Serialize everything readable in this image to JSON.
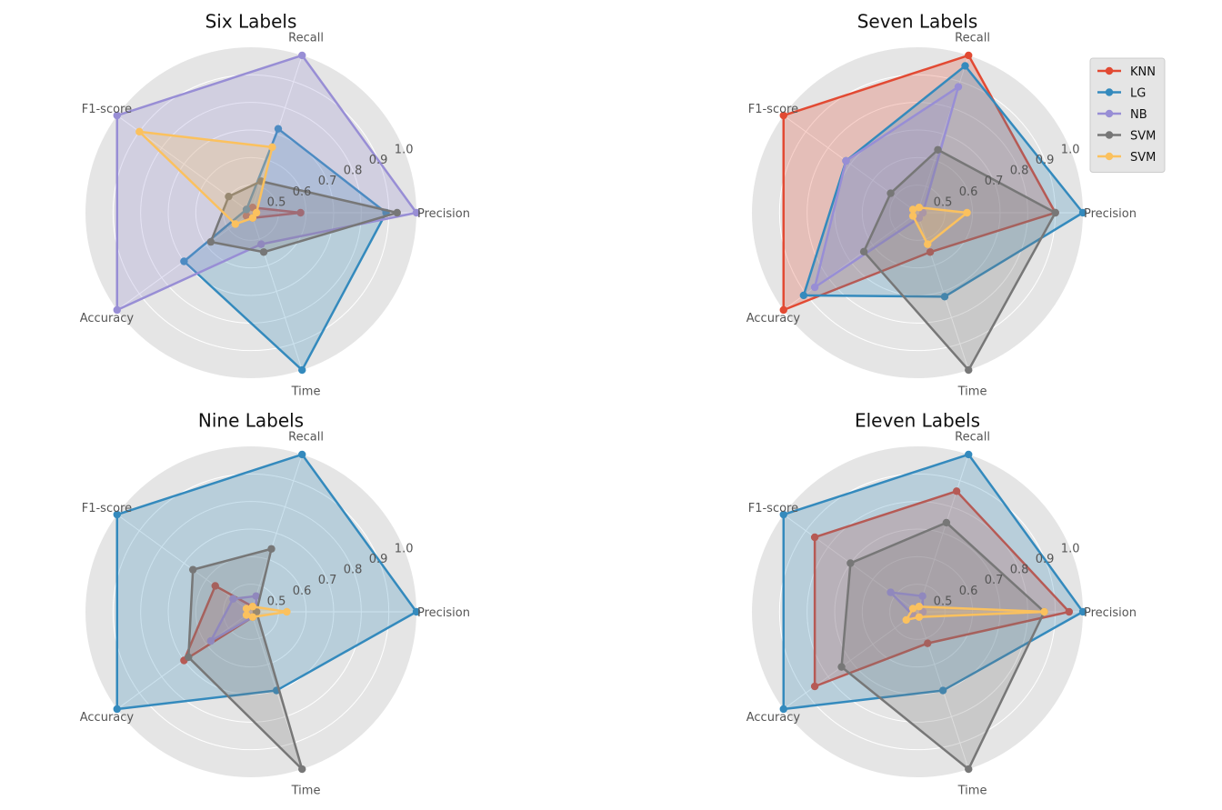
{
  "chart_data": [
    {
      "type": "radar",
      "title": "Six Labels",
      "axes": [
        "Precision",
        "Recall",
        "F1-score",
        "Accuracy",
        "Time"
      ],
      "rlim": [
        0.4,
        1.0
      ],
      "rticks": [
        "0.5",
        "0.6",
        "0.7",
        "0.8",
        "0.9",
        "1.0"
      ],
      "grid": true,
      "series": [
        {
          "name": "KNN",
          "values": [
            0.58,
            0.42,
            0.42,
            0.42,
            0.42
          ]
        },
        {
          "name": "LG",
          "values": [
            0.89,
            0.72,
            0.42,
            0.7,
            1.0
          ]
        },
        {
          "name": "NB",
          "values": [
            1.0,
            1.0,
            1.0,
            1.0,
            0.52
          ]
        },
        {
          "name": "SVM",
          "values": [
            0.93,
            0.52,
            0.5,
            0.58,
            0.55
          ]
        },
        {
          "name": "SVM",
          "values": [
            0.42,
            0.65,
            0.9,
            0.47,
            0.42
          ]
        }
      ]
    },
    {
      "type": "radar",
      "title": "Seven Labels",
      "axes": [
        "Precision",
        "Recall",
        "F1-score",
        "Accuracy",
        "Time"
      ],
      "rlim": [
        0.4,
        1.0
      ],
      "rticks": [
        "0.5",
        "0.6",
        "0.7",
        "0.8",
        "0.9",
        "1.0"
      ],
      "grid": true,
      "series": [
        {
          "name": "KNN",
          "values": [
            0.9,
            1.0,
            1.0,
            1.0,
            0.55
          ]
        },
        {
          "name": "LG",
          "values": [
            1.0,
            0.96,
            0.72,
            0.91,
            0.72
          ]
        },
        {
          "name": "NB",
          "values": [
            0.42,
            0.88,
            0.72,
            0.86,
            0.42
          ]
        },
        {
          "name": "SVM",
          "values": [
            0.9,
            0.64,
            0.52,
            0.64,
            1.0
          ]
        },
        {
          "name": "SVM",
          "values": [
            0.58,
            0.42,
            0.42,
            0.42,
            0.52
          ]
        }
      ]
    },
    {
      "type": "radar",
      "title": "Nine Labels",
      "axes": [
        "Precision",
        "Recall",
        "F1-score",
        "Accuracy",
        "Time"
      ],
      "rlim": [
        0.4,
        1.0
      ],
      "rticks": [
        "0.5",
        "0.6",
        "0.7",
        "0.8",
        "0.9",
        "1.0"
      ],
      "grid": true,
      "series": [
        {
          "name": "KNN",
          "values": [
            0.42,
            0.42,
            0.56,
            0.7,
            0.42
          ]
        },
        {
          "name": "LG",
          "values": [
            1.0,
            1.0,
            1.0,
            1.0,
            0.7
          ]
        },
        {
          "name": "NB",
          "values": [
            0.42,
            0.46,
            0.48,
            0.58,
            0.42
          ]
        },
        {
          "name": "SVM",
          "values": [
            0.42,
            0.64,
            0.66,
            0.68,
            1.0
          ]
        },
        {
          "name": "SVM",
          "values": [
            0.53,
            0.42,
            0.42,
            0.42,
            0.42
          ]
        }
      ]
    },
    {
      "type": "radar",
      "title": "Eleven Labels",
      "axes": [
        "Precision",
        "Recall",
        "F1-score",
        "Accuracy",
        "Time"
      ],
      "rlim": [
        0.4,
        1.0
      ],
      "rticks": [
        "0.5",
        "0.6",
        "0.7",
        "0.8",
        "0.9",
        "1.0"
      ],
      "grid": true,
      "series": [
        {
          "name": "KNN",
          "values": [
            0.95,
            0.86,
            0.86,
            0.86,
            0.52
          ]
        },
        {
          "name": "LG",
          "values": [
            1.0,
            1.0,
            1.0,
            1.0,
            0.7
          ]
        },
        {
          "name": "NB",
          "values": [
            0.42,
            0.46,
            0.52,
            0.42,
            0.42
          ]
        },
        {
          "name": "SVM",
          "values": [
            0.86,
            0.74,
            0.7,
            0.74,
            1.0
          ]
        },
        {
          "name": "SVM",
          "values": [
            0.86,
            0.42,
            0.42,
            0.45,
            0.42
          ]
        }
      ]
    }
  ],
  "legend": {
    "placement": "top-right",
    "entries": [
      "KNN",
      "LG",
      "NB",
      "SVM",
      "SVM"
    ]
  },
  "colors": [
    "#E24A33",
    "#348ABD",
    "#988ED5",
    "#777777",
    "#FBC15E"
  ]
}
